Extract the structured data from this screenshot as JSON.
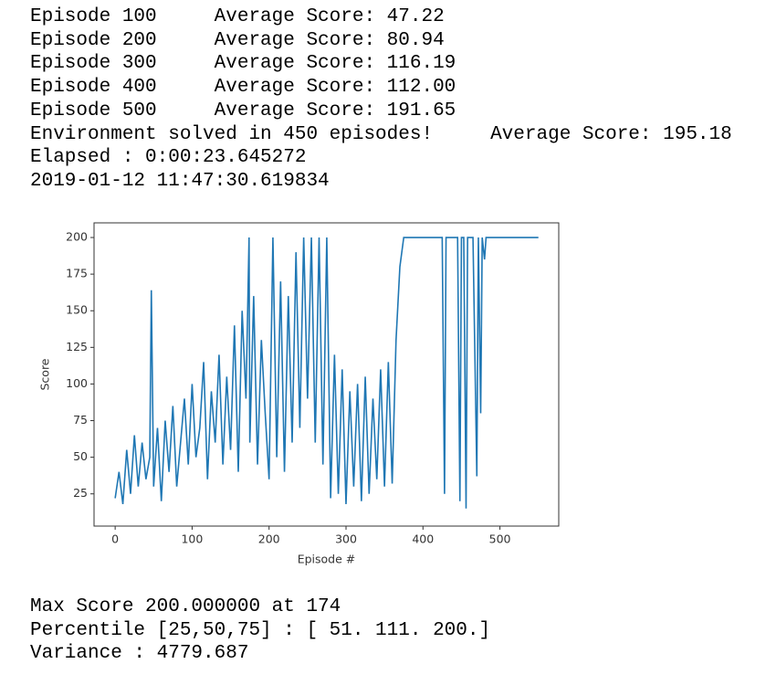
{
  "log_lines": [
    "Episode 100     Average Score: 47.22",
    "Episode 200     Average Score: 80.94",
    "Episode 300     Average Score: 116.19",
    "Episode 400     Average Score: 112.00",
    "Episode 500     Average Score: 191.65",
    "Environment solved in 450 episodes!     Average Score: 195.18",
    "Elapsed : 0:00:23.645272",
    "2019-01-12 11:47:30.619834"
  ],
  "chart_data": {
    "type": "line",
    "xlabel": "Episode #",
    "ylabel": "Score",
    "color": "#1f77b4",
    "x": [
      0,
      5,
      10,
      15,
      20,
      25,
      30,
      35,
      40,
      45,
      47,
      50,
      55,
      60,
      65,
      70,
      75,
      80,
      85,
      90,
      95,
      100,
      105,
      110,
      115,
      120,
      125,
      130,
      135,
      140,
      145,
      150,
      155,
      160,
      165,
      170,
      174,
      175,
      180,
      185,
      190,
      195,
      200,
      205,
      210,
      215,
      220,
      225,
      230,
      235,
      240,
      245,
      250,
      255,
      260,
      265,
      270,
      275,
      280,
      285,
      290,
      295,
      300,
      305,
      310,
      315,
      320,
      325,
      330,
      335,
      340,
      345,
      350,
      355,
      360,
      365,
      370,
      375,
      380,
      385,
      390,
      395,
      400,
      405,
      410,
      415,
      420,
      425,
      428,
      430,
      445,
      448,
      450,
      453,
      456,
      458,
      465,
      470,
      472,
      475,
      477,
      480,
      482,
      550
    ],
    "values": [
      22,
      40,
      18,
      55,
      25,
      65,
      30,
      60,
      35,
      50,
      164,
      30,
      70,
      20,
      75,
      40,
      85,
      30,
      60,
      90,
      45,
      100,
      50,
      70,
      115,
      35,
      95,
      60,
      120,
      45,
      105,
      55,
      140,
      40,
      150,
      90,
      200,
      60,
      160,
      45,
      130,
      80,
      35,
      200,
      50,
      170,
      40,
      160,
      60,
      190,
      70,
      200,
      90,
      200,
      60,
      200,
      45,
      200,
      22,
      120,
      25,
      110,
      18,
      95,
      30,
      100,
      20,
      105,
      25,
      90,
      35,
      110,
      30,
      115,
      32,
      130,
      180,
      200,
      200,
      200,
      200,
      200,
      200,
      200,
      200,
      200,
      200,
      200,
      25,
      200,
      200,
      20,
      200,
      200,
      15,
      200,
      200,
      37,
      200,
      80,
      200,
      185,
      200,
      200
    ],
    "xlim": [
      -27.45,
      576.45
    ],
    "ylim": [
      3,
      210
    ],
    "xticks": [
      0,
      100,
      200,
      300,
      400,
      500
    ],
    "yticks": [
      25,
      50,
      75,
      100,
      125,
      150,
      175,
      200
    ]
  },
  "summary_lines": [
    "Max Score 200.000000 at 174",
    "Percentile [25,50,75] : [ 51. 111. 200.]",
    "Variance : 4779.687"
  ]
}
